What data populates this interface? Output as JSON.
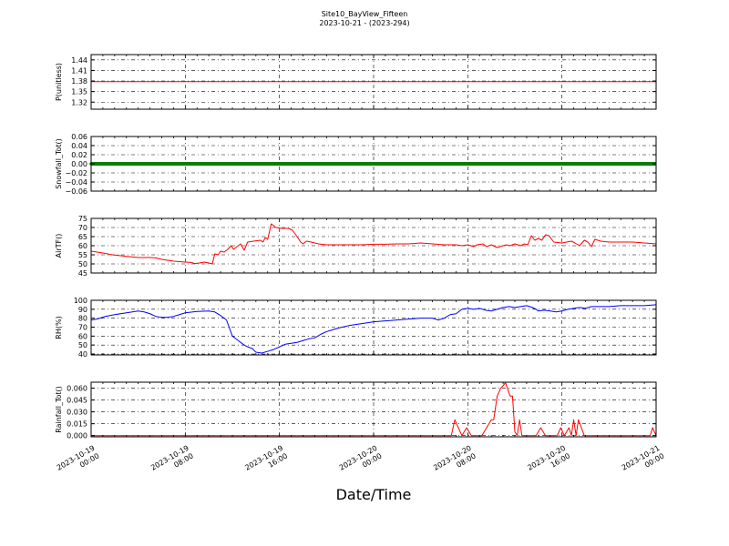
{
  "title_line1": "Site10_BayView_Fifteen",
  "title_line2": "2023-10-21 - (2023-294)",
  "xlabel": "Date/Time",
  "x_tick_labels": [
    [
      "2023-10-19",
      "00:00"
    ],
    [
      "2023-10-19",
      "08:00"
    ],
    [
      "2023-10-19",
      "16:00"
    ],
    [
      "2023-10-20",
      "00:00"
    ],
    [
      "2023-10-20",
      "08:00"
    ],
    [
      "2023-10-20",
      "16:00"
    ],
    [
      "2023-10-21",
      "00:00"
    ]
  ],
  "colors": {
    "red": "#ff0000",
    "green": "#008000",
    "blue": "#0000ff"
  },
  "chart_data": [
    {
      "type": "line",
      "ylabel": "P(unitless)",
      "ylim": [
        1.3,
        1.455
      ],
      "yticks": [
        1.32,
        1.35,
        1.38,
        1.41,
        1.44
      ],
      "ytick_labels": [
        "1.32",
        "1.35",
        "1.38",
        "1.41",
        "1.44"
      ],
      "xlim_hours": [
        0,
        48
      ],
      "grid": true,
      "color": "red",
      "points": [
        [
          0,
          1.378
        ],
        [
          48,
          1.378
        ]
      ]
    },
    {
      "type": "line",
      "ylabel": "Snowfall_Tot()",
      "ylim": [
        -0.06,
        0.06
      ],
      "yticks": [
        -0.06,
        -0.04,
        -0.02,
        0.0,
        0.02,
        0.04,
        0.06
      ],
      "ytick_labels": [
        "−0.06",
        "−0.04",
        "−0.02",
        "0.00",
        "0.02",
        "0.04",
        "0.06"
      ],
      "xlim_hours": [
        0,
        48
      ],
      "grid": true,
      "color": "green",
      "points": [
        [
          0,
          0.0
        ],
        [
          48,
          0.0
        ]
      ]
    },
    {
      "type": "line",
      "ylabel": "AirTF()",
      "ylim": [
        45,
        75
      ],
      "yticks": [
        45,
        50,
        55,
        60,
        65,
        70,
        75
      ],
      "ytick_labels": [
        "45",
        "50",
        "55",
        "60",
        "65",
        "70",
        "75"
      ],
      "xlim_hours": [
        0,
        48
      ],
      "grid": true,
      "color": "red",
      "points": [
        [
          0,
          57
        ],
        [
          1,
          56
        ],
        [
          1.8,
          55
        ],
        [
          2.5,
          54.5
        ],
        [
          3.2,
          54
        ],
        [
          4,
          53.5
        ],
        [
          5,
          53.5
        ],
        [
          5.5,
          53.3
        ],
        [
          6,
          52.5
        ],
        [
          7,
          51.5
        ],
        [
          8,
          51
        ],
        [
          8.5,
          50.8
        ],
        [
          8.8,
          50.2
        ],
        [
          9.2,
          50.5
        ],
        [
          9.6,
          51
        ],
        [
          10,
          50.5
        ],
        [
          10.3,
          50
        ],
        [
          10.5,
          55.5
        ],
        [
          10.8,
          55
        ],
        [
          11,
          57
        ],
        [
          11.3,
          56.5
        ],
        [
          11.6,
          58
        ],
        [
          11.9,
          60
        ],
        [
          12.1,
          58
        ],
        [
          12.4,
          59.5
        ],
        [
          12.7,
          61
        ],
        [
          13,
          57.5
        ],
        [
          13.3,
          62
        ],
        [
          13.8,
          62.5
        ],
        [
          14.4,
          63
        ],
        [
          14.6,
          62
        ],
        [
          14.8,
          64.5
        ],
        [
          15.0,
          63.5
        ],
        [
          15.3,
          72
        ],
        [
          15.7,
          70
        ],
        [
          16.2,
          69.5
        ],
        [
          16.8,
          69.5
        ],
        [
          17.1,
          68.5
        ],
        [
          17.5,
          65
        ],
        [
          17.8,
          62
        ],
        [
          18,
          61
        ],
        [
          18.3,
          62.5
        ],
        [
          18.7,
          62
        ],
        [
          19.3,
          61
        ],
        [
          20,
          60.5
        ],
        [
          21,
          60.5
        ],
        [
          22,
          60.5
        ],
        [
          23,
          60.5
        ],
        [
          24,
          60.8
        ],
        [
          25,
          60.8
        ],
        [
          26,
          61
        ],
        [
          27,
          61
        ],
        [
          28,
          61.5
        ],
        [
          29,
          61
        ],
        [
          30,
          60.5
        ],
        [
          31,
          60.5
        ],
        [
          31.5,
          60
        ],
        [
          32,
          60.5
        ],
        [
          32.5,
          59.5
        ],
        [
          32.8,
          60.5
        ],
        [
          33.3,
          61
        ],
        [
          33.6,
          59.5
        ],
        [
          34,
          60.5
        ],
        [
          34.5,
          59
        ],
        [
          35,
          60
        ],
        [
          35.3,
          60.5
        ],
        [
          35.6,
          60
        ],
        [
          36,
          61
        ],
        [
          36.5,
          60
        ],
        [
          36.8,
          61
        ],
        [
          37.1,
          60.5
        ],
        [
          37.4,
          65.5
        ],
        [
          37.7,
          63
        ],
        [
          38,
          64
        ],
        [
          38.3,
          63
        ],
        [
          38.6,
          66
        ],
        [
          38.9,
          65.5
        ],
        [
          39.3,
          62
        ],
        [
          40,
          61.5
        ],
        [
          40.8,
          62.5
        ],
        [
          41.1,
          61.5
        ],
        [
          41.5,
          60
        ],
        [
          41.9,
          63
        ],
        [
          42.2,
          62
        ],
        [
          42.5,
          59.5
        ],
        [
          42.8,
          63.5
        ],
        [
          43.3,
          62.5
        ],
        [
          44,
          62
        ],
        [
          45,
          62
        ],
        [
          46,
          62
        ],
        [
          47,
          61.5
        ],
        [
          48,
          61
        ]
      ]
    },
    {
      "type": "line",
      "ylabel": "RH(%)",
      "ylim": [
        39,
        100
      ],
      "yticks": [
        40,
        50,
        60,
        70,
        80,
        90,
        100
      ],
      "ytick_labels": [
        "40",
        "50",
        "60",
        "70",
        "80",
        "90",
        "100"
      ],
      "xlim_hours": [
        0,
        48
      ],
      "grid": true,
      "color": "blue",
      "points": [
        [
          0,
          78
        ],
        [
          0.5,
          79
        ],
        [
          1.2,
          82
        ],
        [
          2,
          84
        ],
        [
          3,
          86
        ],
        [
          4,
          88
        ],
        [
          4.5,
          87
        ],
        [
          5,
          85
        ],
        [
          5.5,
          82
        ],
        [
          6,
          81
        ],
        [
          6.5,
          81
        ],
        [
          7,
          82
        ],
        [
          7.5,
          84
        ],
        [
          8,
          86
        ],
        [
          9,
          87.5
        ],
        [
          10,
          88
        ],
        [
          10.5,
          87
        ],
        [
          11,
          83
        ],
        [
          11.5,
          78
        ],
        [
          12,
          60
        ],
        [
          12.5,
          55
        ],
        [
          13,
          50
        ],
        [
          13.3,
          48
        ],
        [
          13.7,
          46
        ],
        [
          14,
          42
        ],
        [
          14.5,
          41
        ],
        [
          15,
          43
        ],
        [
          15.5,
          45
        ],
        [
          16,
          48
        ],
        [
          16.5,
          51
        ],
        [
          17,
          52
        ],
        [
          17.5,
          53
        ],
        [
          18,
          55
        ],
        [
          18.5,
          57
        ],
        [
          19,
          58
        ],
        [
          19.5,
          62
        ],
        [
          20,
          65
        ],
        [
          20.5,
          67
        ],
        [
          21,
          69
        ],
        [
          22,
          72
        ],
        [
          23,
          74
        ],
        [
          24,
          76
        ],
        [
          25,
          77
        ],
        [
          26,
          78
        ],
        [
          27,
          79
        ],
        [
          28,
          80
        ],
        [
          29,
          80
        ],
        [
          29.5,
          78
        ],
        [
          30,
          80
        ],
        [
          30.5,
          84
        ],
        [
          31,
          85
        ],
        [
          31.5,
          90
        ],
        [
          32,
          91
        ],
        [
          32.5,
          90
        ],
        [
          33,
          91
        ],
        [
          33.5,
          89
        ],
        [
          34,
          88
        ],
        [
          34.5,
          90
        ],
        [
          35,
          92
        ],
        [
          35.5,
          93
        ],
        [
          36,
          92
        ],
        [
          36.5,
          93
        ],
        [
          37,
          94
        ],
        [
          37.5,
          92
        ],
        [
          37.8,
          90
        ],
        [
          38,
          88
        ],
        [
          38.5,
          89
        ],
        [
          39,
          88
        ],
        [
          39.5,
          87
        ],
        [
          40,
          88
        ],
        [
          40.5,
          90
        ],
        [
          41,
          91
        ],
        [
          41.5,
          92
        ],
        [
          42,
          91
        ],
        [
          42.5,
          93
        ],
        [
          43,
          93
        ],
        [
          44,
          93
        ],
        [
          45,
          94
        ],
        [
          46,
          94
        ],
        [
          47,
          94
        ],
        [
          48,
          95
        ]
      ]
    },
    {
      "type": "line",
      "ylabel": "Rainfall_Tot()",
      "ylim": [
        -0.0015,
        0.0675
      ],
      "yticks": [
        0.0,
        0.015,
        0.03,
        0.045,
        0.06
      ],
      "ytick_labels": [
        "0.000",
        "0.015",
        "0.030",
        "0.045",
        "0.060"
      ],
      "xlim_hours": [
        0,
        48
      ],
      "grid": true,
      "color": "red",
      "points": [
        [
          0,
          0
        ],
        [
          30.6,
          0
        ],
        [
          30.9,
          0.02
        ],
        [
          31.5,
          0
        ],
        [
          31.9,
          0.01
        ],
        [
          32.3,
          0
        ],
        [
          33.2,
          0
        ],
        [
          33.6,
          0.01
        ],
        [
          34,
          0.02
        ],
        [
          34.2,
          0.02
        ],
        [
          34.5,
          0.05
        ],
        [
          34.8,
          0.06
        ],
        [
          35,
          0.063
        ],
        [
          35.2,
          0.067
        ],
        [
          35.6,
          0.05
        ],
        [
          35.8,
          0.05
        ],
        [
          36,
          0.005
        ],
        [
          36.2,
          0
        ],
        [
          36.4,
          0.02
        ],
        [
          36.6,
          0
        ],
        [
          37.8,
          0
        ],
        [
          38.2,
          0.01
        ],
        [
          38.6,
          0
        ],
        [
          39.6,
          0
        ],
        [
          39.9,
          0.01
        ],
        [
          40.2,
          0
        ],
        [
          40.6,
          0.01
        ],
        [
          40.8,
          0
        ],
        [
          41,
          0.02
        ],
        [
          41.2,
          0
        ],
        [
          41.4,
          0.02
        ],
        [
          41.9,
          0
        ],
        [
          47.5,
          0
        ],
        [
          47.7,
          0.01
        ],
        [
          48,
          0
        ]
      ]
    }
  ]
}
